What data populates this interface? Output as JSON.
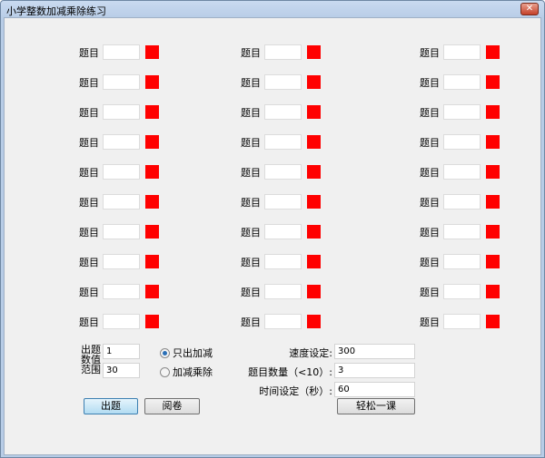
{
  "window": {
    "title": "小学整数加减乘除练习",
    "close_label": "✕"
  },
  "questions": [
    {
      "label": "题目",
      "value": ""
    },
    {
      "label": "题目",
      "value": ""
    },
    {
      "label": "题目",
      "value": ""
    },
    {
      "label": "题目",
      "value": ""
    },
    {
      "label": "题目",
      "value": ""
    },
    {
      "label": "题目",
      "value": ""
    },
    {
      "label": "题目",
      "value": ""
    },
    {
      "label": "题目",
      "value": ""
    },
    {
      "label": "题目",
      "value": ""
    },
    {
      "label": "题目",
      "value": ""
    },
    {
      "label": "题目",
      "value": ""
    },
    {
      "label": "题目",
      "value": ""
    },
    {
      "label": "题目",
      "value": ""
    },
    {
      "label": "题目",
      "value": ""
    },
    {
      "label": "题目",
      "value": ""
    },
    {
      "label": "题目",
      "value": ""
    },
    {
      "label": "题目",
      "value": ""
    },
    {
      "label": "题目",
      "value": ""
    },
    {
      "label": "题目",
      "value": ""
    },
    {
      "label": "题目",
      "value": ""
    },
    {
      "label": "题目",
      "value": ""
    },
    {
      "label": "题目",
      "value": ""
    },
    {
      "label": "题目",
      "value": ""
    },
    {
      "label": "题目",
      "value": ""
    },
    {
      "label": "题目",
      "value": ""
    },
    {
      "label": "题目",
      "value": ""
    },
    {
      "label": "题目",
      "value": ""
    },
    {
      "label": "题目",
      "value": ""
    },
    {
      "label": "题目",
      "value": ""
    },
    {
      "label": "题目",
      "value": ""
    }
  ],
  "mark_color": "#ff0000",
  "range": {
    "label1": "出题",
    "label2": "数值",
    "label3": "范围",
    "min": "1",
    "max": "30"
  },
  "mode": {
    "options": [
      "只出加减",
      "加减乘除"
    ],
    "selected": 0
  },
  "settings": {
    "speed_label": "速度设定:",
    "speed_value": "300",
    "count_label": "题目数量（<10）:",
    "count_value": "3",
    "time_label": "时间设定（秒）:",
    "time_value": "60"
  },
  "buttons": {
    "generate": "出题",
    "grade": "阅卷",
    "relax": "轻松一课"
  }
}
